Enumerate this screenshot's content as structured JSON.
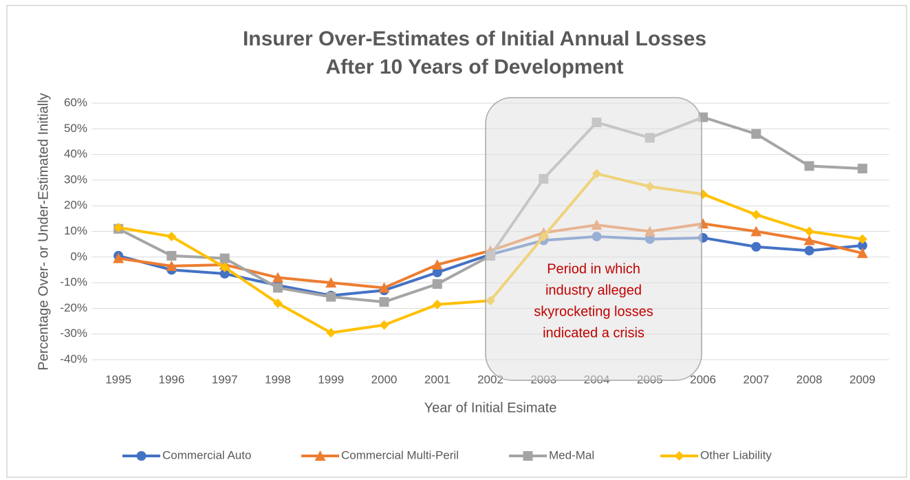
{
  "chart_data": {
    "type": "line",
    "title": [
      "Insurer Over-Estimates of Initial Annual Losses",
      "After 10 Years of Development"
    ],
    "y_label": "Percentage Over- or Under-Estimated Initially",
    "x_label": "Year of Initial Esimate",
    "categories": [
      "1995",
      "1996",
      "1997",
      "1998",
      "1999",
      "2000",
      "2001",
      "2002",
      "2003",
      "2004",
      "2005",
      "2006",
      "2007",
      "2008",
      "2009"
    ],
    "ylim": [
      -40,
      60
    ],
    "yticks": [
      {
        "value": -40,
        "label": "-40%"
      },
      {
        "value": -30,
        "label": "-30%"
      },
      {
        "value": -20,
        "label": "-20%"
      },
      {
        "value": -10,
        "label": "-10%"
      },
      {
        "value": 0,
        "label": "0%"
      },
      {
        "value": 10,
        "label": "10%"
      },
      {
        "value": 20,
        "label": "20%"
      },
      {
        "value": 30,
        "label": "30%"
      },
      {
        "value": 40,
        "label": "40%"
      },
      {
        "value": 50,
        "label": "50%"
      },
      {
        "value": 60,
        "label": "60%"
      }
    ],
    "grid": true,
    "legend": "bottom",
    "series": [
      {
        "name": "Commercial Auto",
        "color": "#4472c4",
        "marker": "circle",
        "values": [
          0.5,
          -5,
          -6.5,
          -11,
          -15,
          -13,
          -6,
          1,
          6.5,
          8,
          7,
          7.5,
          4,
          2.5,
          4.5
        ]
      },
      {
        "name": "Commercial Multi-Peril",
        "color": "#ed7d31",
        "marker": "triangle",
        "values": [
          -0.5,
          -3.5,
          -3,
          -8,
          -10,
          -12,
          -3,
          2.5,
          9.5,
          12.5,
          10,
          13,
          10,
          6.5,
          1.5
        ]
      },
      {
        "name": "Med-Mal",
        "color": "#a5a5a5",
        "marker": "square",
        "values": [
          11,
          0.5,
          -0.5,
          -12,
          -15.5,
          -17.5,
          -10.5,
          0.5,
          30.5,
          52.5,
          46.5,
          54.5,
          48,
          35.5,
          34.5
        ]
      },
      {
        "name": "Other Liability",
        "color": "#ffc000",
        "marker": "diamond",
        "values": [
          11.5,
          8,
          -4,
          -18,
          -29.5,
          -26.5,
          -18.5,
          -17,
          8,
          32.5,
          27.5,
          24.5,
          16.5,
          10,
          7
        ]
      }
    ],
    "annotation": {
      "lines": [
        "Period in which",
        "industry alleged",
        "skyrocketing losses",
        "indicated a crisis"
      ],
      "color": "#c00000"
    }
  }
}
